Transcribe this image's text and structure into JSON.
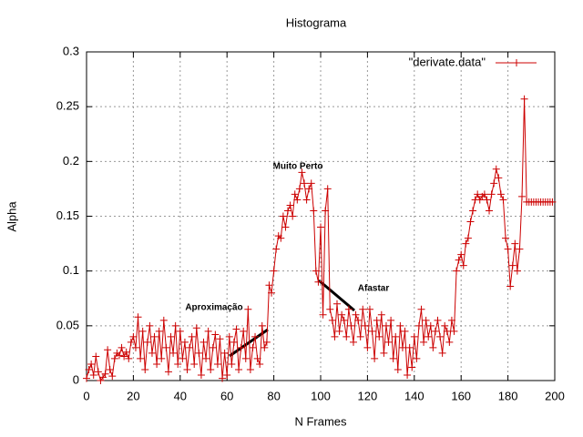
{
  "chart_data": {
    "type": "line",
    "title": "Histograma",
    "x_label": "N Frames",
    "y_label": "Alpha",
    "annotations": [
      "Muito Perto",
      "Aproximação",
      "Afastar"
    ],
    "x": [
      0,
      1,
      2,
      3,
      4,
      5,
      6,
      7,
      8,
      9,
      10,
      11,
      12,
      13,
      14,
      15,
      16,
      17,
      18,
      19,
      20,
      21,
      22,
      23,
      24,
      25,
      26,
      27,
      28,
      29,
      30,
      31,
      32,
      33,
      34,
      35,
      36,
      37,
      38,
      39,
      40,
      41,
      42,
      43,
      44,
      45,
      46,
      47,
      48,
      49,
      50,
      51,
      52,
      53,
      54,
      55,
      56,
      57,
      58,
      59,
      60,
      61,
      62,
      63,
      64,
      65,
      66,
      67,
      68,
      69,
      70,
      71,
      72,
      73,
      74,
      75,
      76,
      77,
      78,
      79,
      80,
      81,
      82,
      83,
      84,
      85,
      86,
      87,
      88,
      89,
      90,
      91,
      92,
      93,
      94,
      95,
      96,
      97,
      98,
      99,
      100,
      101,
      102,
      103,
      104,
      105,
      106,
      107,
      108,
      109,
      110,
      111,
      112,
      113,
      114,
      115,
      116,
      117,
      118,
      119,
      120,
      121,
      122,
      123,
      124,
      125,
      126,
      127,
      128,
      129,
      130,
      131,
      132,
      133,
      134,
      135,
      136,
      137,
      138,
      139,
      140,
      141,
      142,
      143,
      144,
      145,
      146,
      147,
      148,
      149,
      150,
      151,
      152,
      153,
      154,
      155,
      156,
      157,
      158,
      159,
      160,
      161,
      162,
      163,
      164,
      165,
      166,
      167,
      168,
      169,
      170,
      171,
      172,
      173,
      174,
      175,
      176,
      177,
      178,
      179,
      180,
      181,
      182,
      183,
      184,
      185,
      186,
      187,
      188,
      189,
      190,
      191,
      192,
      193,
      194,
      195,
      196,
      197,
      198,
      199
    ],
    "series": [
      {
        "name": "\"derivate.data\"",
        "color": "#cc0000",
        "values": [
          0.002,
          0.01,
          0.015,
          0.005,
          0.022,
          0.008,
          0.0,
          0.003,
          0.006,
          0.028,
          0.01,
          0.004,
          0.02,
          0.025,
          0.023,
          0.03,
          0.022,
          0.026,
          0.02,
          0.035,
          0.04,
          0.03,
          0.058,
          0.02,
          0.045,
          0.01,
          0.035,
          0.05,
          0.025,
          0.04,
          0.015,
          0.045,
          0.02,
          0.055,
          0.03,
          0.008,
          0.04,
          0.025,
          0.05,
          0.015,
          0.045,
          0.02,
          0.035,
          0.01,
          0.03,
          0.04,
          0.015,
          0.048,
          0.025,
          0.005,
          0.035,
          0.02,
          0.045,
          0.01,
          0.03,
          0.042,
          0.015,
          0.038,
          0.002,
          0.025,
          0.005,
          0.04,
          0.015,
          0.035,
          0.047,
          0.01,
          0.03,
          0.045,
          0.02,
          0.065,
          0.01,
          0.03,
          0.04,
          0.02,
          0.015,
          0.05,
          0.03,
          0.035,
          0.087,
          0.08,
          0.1,
          0.12,
          0.132,
          0.13,
          0.15,
          0.14,
          0.155,
          0.16,
          0.15,
          0.17,
          0.165,
          0.175,
          0.19,
          0.18,
          0.165,
          0.175,
          0.18,
          0.155,
          0.1,
          0.09,
          0.14,
          0.06,
          0.155,
          0.175,
          0.065,
          0.055,
          0.04,
          0.07,
          0.045,
          0.06,
          0.055,
          0.04,
          0.065,
          0.05,
          0.035,
          0.06,
          0.055,
          0.04,
          0.065,
          0.05,
          0.03,
          0.065,
          0.045,
          0.02,
          0.055,
          0.04,
          0.06,
          0.025,
          0.05,
          0.035,
          0.055,
          0.02,
          0.04,
          0.01,
          0.05,
          0.03,
          0.045,
          0.005,
          0.03,
          0.012,
          0.04,
          0.02,
          0.05,
          0.065,
          0.035,
          0.055,
          0.04,
          0.05,
          0.03,
          0.045,
          0.055,
          0.04,
          0.025,
          0.05,
          0.045,
          0.035,
          0.055,
          0.045,
          0.1,
          0.11,
          0.115,
          0.105,
          0.125,
          0.13,
          0.145,
          0.155,
          0.165,
          0.17,
          0.165,
          0.168,
          0.17,
          0.165,
          0.155,
          0.17,
          0.18,
          0.193,
          0.185,
          0.17,
          0.165,
          0.13,
          0.12,
          0.086,
          0.105,
          0.125,
          0.1,
          0.12,
          0.168,
          0.257,
          0.163,
          0.163,
          0.163,
          0.163,
          0.163,
          0.163,
          0.163,
          0.163,
          0.163,
          0.163,
          0.163,
          0.163
        ]
      }
    ],
    "xlim": [
      0,
      200
    ],
    "xticks": [
      0,
      20,
      40,
      60,
      80,
      100,
      120,
      140,
      160,
      180,
      200
    ],
    "ylim": [
      0,
      0.3
    ],
    "yticks": [
      0,
      0.05,
      0.1,
      0.15,
      0.2,
      0.25,
      0.3
    ],
    "grid": true,
    "legend": "top-right"
  }
}
